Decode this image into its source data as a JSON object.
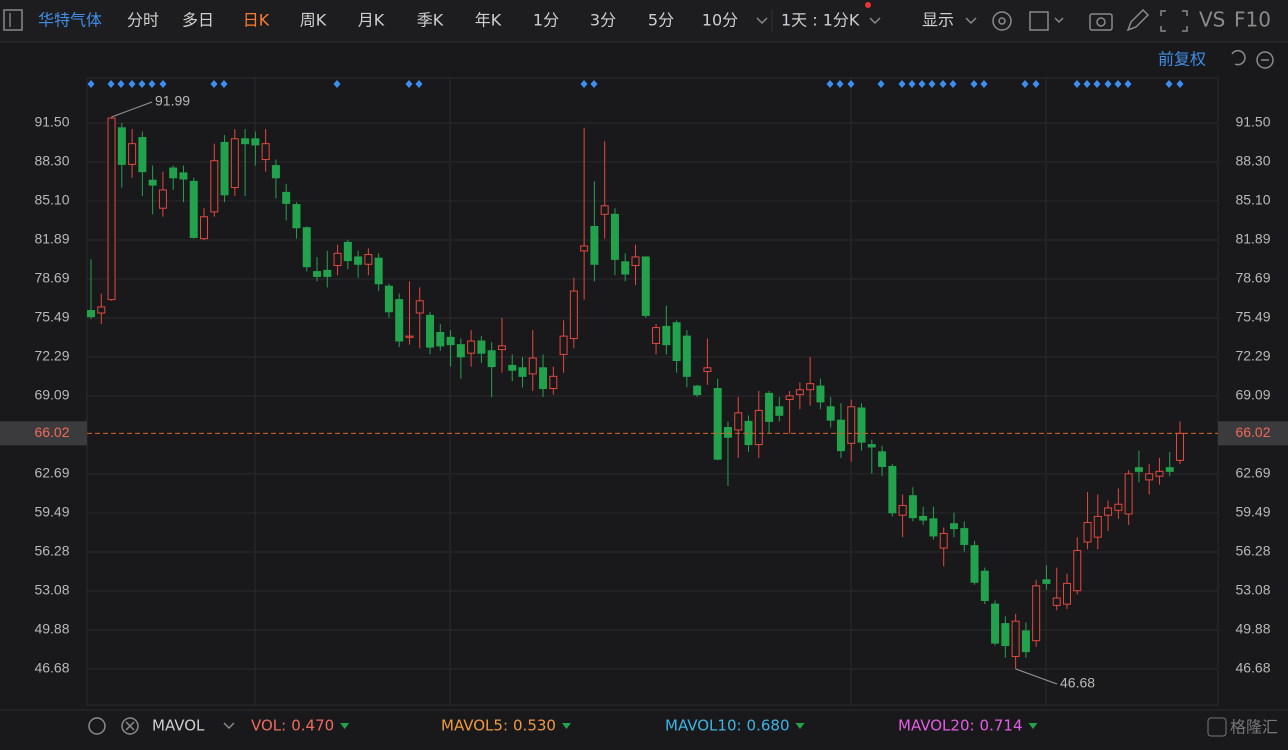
{
  "toolbar": {
    "stock": "华特气体",
    "periods": [
      "分时",
      "多日",
      "日K",
      "周K",
      "月K",
      "季K",
      "年K",
      "1分",
      "3分",
      "5分",
      "10分"
    ],
    "interval": "1天 : 1分K",
    "display": "显示",
    "vs": "VS",
    "f10": "F10"
  },
  "adjust": "前复权",
  "chart_data": {
    "type": "candlestick",
    "open": [
      76.1,
      75.9,
      77.0,
      91.1,
      88.1,
      90.3,
      86.8,
      84.5,
      87.8,
      87.4,
      86.7,
      82.0,
      84.2,
      89.9,
      86.2,
      90.2,
      90.2,
      88.5,
      88.0,
      85.8,
      84.8,
      82.9,
      79.3,
      79.4,
      79.8,
      81.7,
      80.5,
      79.9,
      80.4,
      78.1,
      77.0,
      73.9,
      75.9,
      75.7,
      74.3,
      73.9,
      73.3,
      72.6,
      73.6,
      72.8,
      72.9,
      71.6,
      71.4,
      70.9,
      71.4,
      69.7,
      72.5,
      73.8,
      81.0,
      83.0,
      84.0,
      84.0,
      80.1,
      79.8,
      80.5,
      73.4,
      74.8,
      75.1,
      74.0,
      69.9,
      71.1,
      69.7,
      66.5,
      66.3,
      67.0,
      65.1,
      69.3,
      68.2,
      68.8,
      69.2,
      69.6,
      69.9,
      68.2,
      67.1,
      65.2,
      68.1,
      65.1,
      64.5,
      63.3,
      59.3,
      60.9,
      59.2,
      59.0,
      56.6,
      58.6,
      58.2,
      56.8,
      54.7,
      52.0,
      50.4,
      47.7,
      49.8,
      49.0,
      54.0,
      51.9,
      52.0,
      53.1,
      57.1,
      57.5,
      59.3,
      59.7,
      59.4,
      63.2,
      62.2,
      62.5,
      63.2,
      63.8
    ],
    "high": [
      80.3,
      77.5,
      91.99,
      91.5,
      91.0,
      90.8,
      88.0,
      87.5,
      88.0,
      88.0,
      87.0,
      84.5,
      89.8,
      90.5,
      91.0,
      91.0,
      90.8,
      91.0,
      88.5,
      86.5,
      85.0,
      83.0,
      80.5,
      81.0,
      81.5,
      81.9,
      81.0,
      81.2,
      80.8,
      78.3,
      77.5,
      78.5,
      78.0,
      76.0,
      75.0,
      74.5,
      73.8,
      74.5,
      74.0,
      73.5,
      75.5,
      72.5,
      72.3,
      74.5,
      72.5,
      71.5,
      75.3,
      78.8,
      91.1,
      86.7,
      90.0,
      84.5,
      80.8,
      81.5,
      80.5,
      75.0,
      76.5,
      75.3,
      74.5,
      70.0,
      73.8,
      70.5,
      67.0,
      69.0,
      67.5,
      69.5,
      69.5,
      69.0,
      69.5,
      70.2,
      72.3,
      70.5,
      69.0,
      68.5,
      68.8,
      68.5,
      65.5,
      65.0,
      63.5,
      61.0,
      61.6,
      60.0,
      60.0,
      58.3,
      59.5,
      58.8,
      57.2,
      55.0,
      52.3,
      51.0,
      51.2,
      50.5,
      54.0,
      55.2,
      55.0,
      54.5,
      57.5,
      61.2,
      61.0,
      60.5,
      61.5,
      63.0,
      64.6,
      63.5,
      64.0,
      64.5,
      67.0
    ],
    "low": [
      75.4,
      75.0,
      76.9,
      86.2,
      87.0,
      85.5,
      84.0,
      83.8,
      86.0,
      85.0,
      82.0,
      81.9,
      83.8,
      85.0,
      85.5,
      85.5,
      88.0,
      87.5,
      85.3,
      83.5,
      82.0,
      79.3,
      78.5,
      78.0,
      79.0,
      79.5,
      78.8,
      79.0,
      77.7,
      75.5,
      73.1,
      73.3,
      73.0,
      72.5,
      72.8,
      71.5,
      70.5,
      71.5,
      71.8,
      69.0,
      71.0,
      70.3,
      69.8,
      69.5,
      69.0,
      69.2,
      71.0,
      73.0,
      77.0,
      78.5,
      82.0,
      79.0,
      78.5,
      78.2,
      75.5,
      72.5,
      72.5,
      71.0,
      69.8,
      69.0,
      70.0,
      63.8,
      61.7,
      64.0,
      64.5,
      64.0,
      66.0,
      67.0,
      66.0,
      68.0,
      68.3,
      68.0,
      66.5,
      64.0,
      63.7,
      64.6,
      62.7,
      62.5,
      59.2,
      57.5,
      58.8,
      58.5,
      57.3,
      55.1,
      57.5,
      56.3,
      53.6,
      52.0,
      48.6,
      47.6,
      46.68,
      47.6,
      48.5,
      53.2,
      51.5,
      51.6,
      52.8,
      56.5,
      56.5,
      58.0,
      59.0,
      58.5,
      62.0,
      61.0,
      61.8,
      62.5,
      63.5
    ],
    "close": [
      75.6,
      76.4,
      91.9,
      88.1,
      89.8,
      87.5,
      86.4,
      86.0,
      87.0,
      86.9,
      82.1,
      83.8,
      88.4,
      85.6,
      90.2,
      89.8,
      89.7,
      89.8,
      87.0,
      84.9,
      82.9,
      79.7,
      78.9,
      78.9,
      80.8,
      80.2,
      79.9,
      80.7,
      78.3,
      76.0,
      73.6,
      74.0,
      76.9,
      73.1,
      73.2,
      73.3,
      72.3,
      73.6,
      72.6,
      71.5,
      73.2,
      71.2,
      70.7,
      72.2,
      69.7,
      70.7,
      74.0,
      77.7,
      81.4,
      79.9,
      84.7,
      80.3,
      79.1,
      80.5,
      75.7,
      74.7,
      73.3,
      72.0,
      70.7,
      69.2,
      71.4,
      63.9,
      65.7,
      67.7,
      65.1,
      67.9,
      67.0,
      67.5,
      69.1,
      69.6,
      70.1,
      68.6,
      67.1,
      64.6,
      68.2,
      65.3,
      64.9,
      63.3,
      59.5,
      60.1,
      59.1,
      58.9,
      57.6,
      57.8,
      58.2,
      56.9,
      53.8,
      52.3,
      48.8,
      48.6,
      50.6,
      48.1,
      53.5,
      53.7,
      52.5,
      53.7,
      56.4,
      58.7,
      59.2,
      59.9,
      60.2,
      62.7,
      62.9,
      62.7,
      62.9,
      62.9,
      66.02
    ],
    "up_color": "#e2483d",
    "down_color": "#22a24c",
    "ylim": [
      43.72,
      95.19
    ],
    "yticks": [
      {
        "value": 91.5,
        "label": "91.50"
      },
      {
        "value": 88.3,
        "label": "88.30"
      },
      {
        "value": 85.1,
        "label": "85.10"
      },
      81.89,
      78.69,
      75.49,
      72.29,
      69.09,
      62.69,
      59.49,
      56.28,
      53.08,
      49.88,
      46.68
    ],
    "grid": true,
    "last_price": 66.02,
    "max_label": 91.99,
    "min_label": 46.68
  },
  "indicator_bar": {
    "name": "MAVOL",
    "items": [
      {
        "label": "VOL:",
        "value": "0.470",
        "color": "#ee6b5e"
      },
      {
        "label": "MAVOL5:",
        "value": "0.530",
        "color": "#f09a3e"
      },
      {
        "label": "MAVOL10:",
        "value": "0.680",
        "color": "#3db3e6"
      },
      {
        "label": "MAVOL20:",
        "value": "0.714",
        "color": "#e35ee3"
      }
    ]
  },
  "watermark": "格隆汇"
}
